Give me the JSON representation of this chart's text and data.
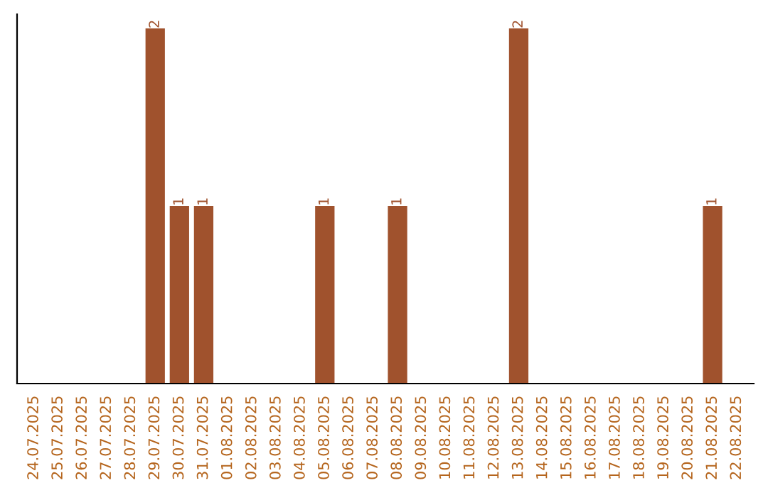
{
  "chart_data": {
    "type": "bar",
    "categories": [
      "24.07.2025",
      "25.07.2025",
      "26.07.2025",
      "27.07.2025",
      "28.07.2025",
      "29.07.2025",
      "30.07.2025",
      "31.07.2025",
      "01.08.2025",
      "02.08.2025",
      "03.08.2025",
      "04.08.2025",
      "05.08.2025",
      "06.08.2025",
      "07.08.2025",
      "08.08.2025",
      "09.08.2025",
      "10.08.2025",
      "11.08.2025",
      "12.08.2025",
      "13.08.2025",
      "14.08.2025",
      "15.08.2025",
      "16.08.2025",
      "17.08.2025",
      "18.08.2025",
      "19.08.2025",
      "20.08.2025",
      "21.08.2025",
      "22.08.2025"
    ],
    "values": [
      0,
      0,
      0,
      0,
      0,
      2,
      1,
      1,
      0,
      0,
      0,
      0,
      1,
      0,
      0,
      1,
      0,
      0,
      0,
      0,
      2,
      0,
      0,
      0,
      0,
      0,
      0,
      0,
      1,
      0
    ],
    "value_labels": [
      null,
      null,
      null,
      null,
      null,
      "2",
      "1",
      "1",
      null,
      null,
      null,
      null,
      "1",
      null,
      null,
      "1",
      null,
      null,
      null,
      null,
      "2",
      null,
      null,
      null,
      null,
      null,
      null,
      null,
      "1",
      null
    ],
    "color": "#a0522d",
    "tick_labels": "x",
    "grid": false,
    "legend": false
  }
}
